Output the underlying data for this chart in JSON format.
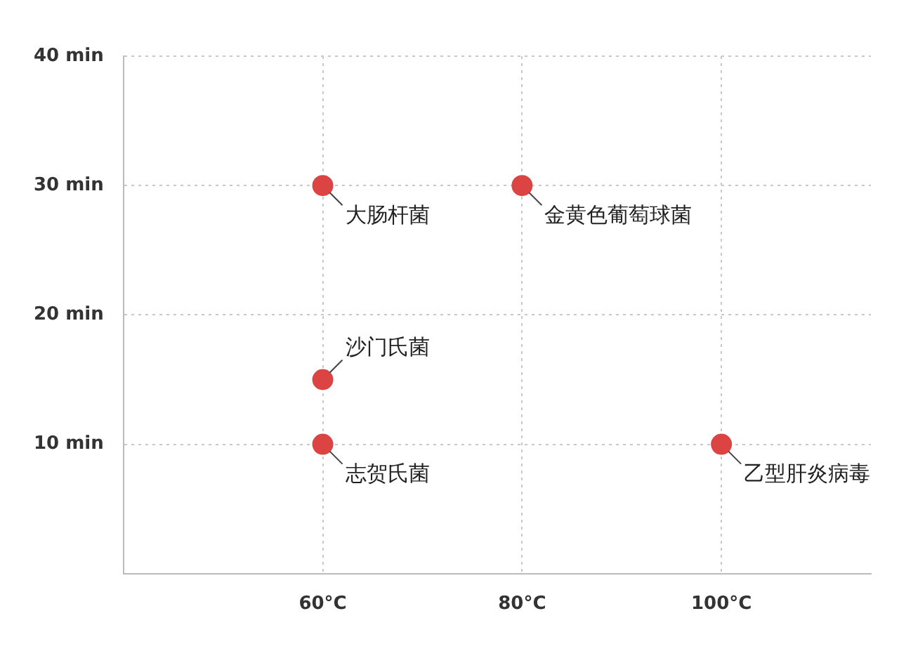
{
  "chart_data": {
    "type": "scatter",
    "x": [
      60,
      80,
      60,
      60,
      100
    ],
    "values": [
      30,
      30,
      15,
      10,
      10
    ],
    "color": "#dc4444",
    "marker": "circle",
    "xlim": [
      40,
      115
    ],
    "xticks": [
      {
        "value": 60,
        "label": "60°C"
      },
      {
        "value": 80,
        "label": "80°C"
      },
      {
        "value": 100,
        "label": "100°C"
      }
    ],
    "ylim": [
      0,
      40
    ],
    "yticks": [
      {
        "value": 0,
        "label": null
      },
      {
        "value": 10,
        "label": "10 min"
      },
      {
        "value": 20,
        "label": "20 min"
      },
      {
        "value": 30,
        "label": "30 min"
      },
      {
        "value": 40,
        "label": "40 min"
      }
    ],
    "grid": true,
    "legend": false,
    "annotations": [
      {
        "text": "大肠杆菌",
        "x": 60,
        "y": 30
      },
      {
        "text": "金黄色葡萄球菌",
        "x": 80,
        "y": 30
      },
      {
        "text": "沙门氏菌",
        "x": 60,
        "y": 15
      },
      {
        "text": "志贺氏菌",
        "x": 60,
        "y": 10
      },
      {
        "text": "乙型肝炎病毒",
        "x": 100,
        "y": 10
      }
    ]
  }
}
